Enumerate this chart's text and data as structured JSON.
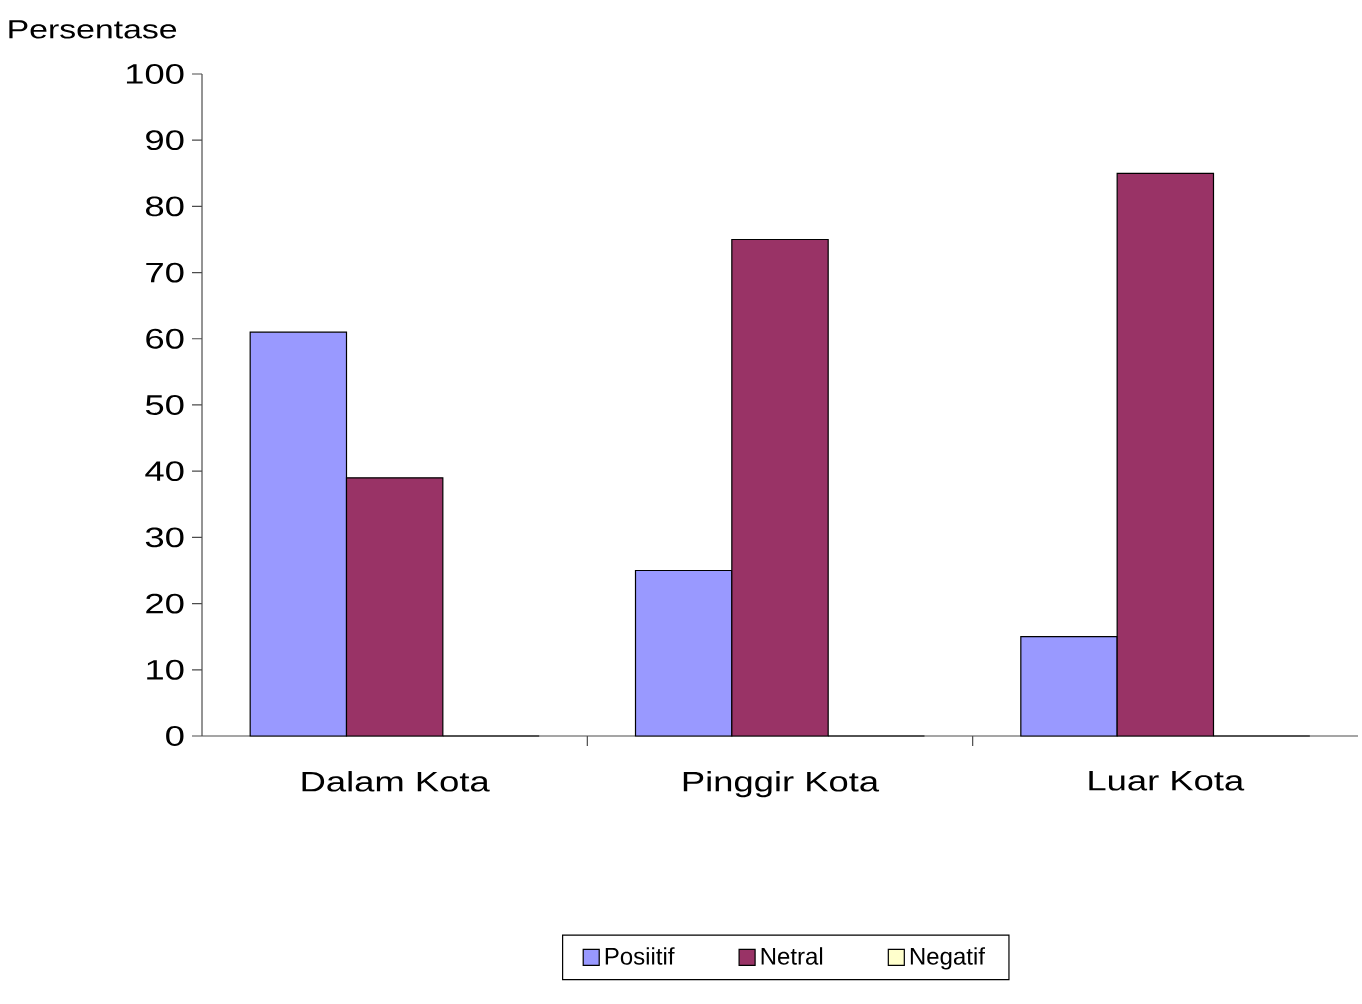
{
  "chart_data": {
    "type": "bar",
    "ylabel": "Persentase",
    "categories": [
      "Dalam Kota",
      "Pinggir Kota",
      "Luar Kota"
    ],
    "series": [
      {
        "name": "Posiitif",
        "color": "#9999ff",
        "values": [
          61,
          25,
          15
        ]
      },
      {
        "name": "Netral",
        "color": "#993366",
        "values": [
          39,
          75,
          85
        ]
      },
      {
        "name": "Negatif",
        "color": "#ffffcc",
        "values": [
          0,
          0,
          0
        ]
      }
    ],
    "ylim": [
      0,
      100
    ],
    "yticks": [
      0,
      10,
      20,
      30,
      40,
      50,
      60,
      70,
      80,
      90,
      100
    ],
    "legend": "bottom"
  }
}
